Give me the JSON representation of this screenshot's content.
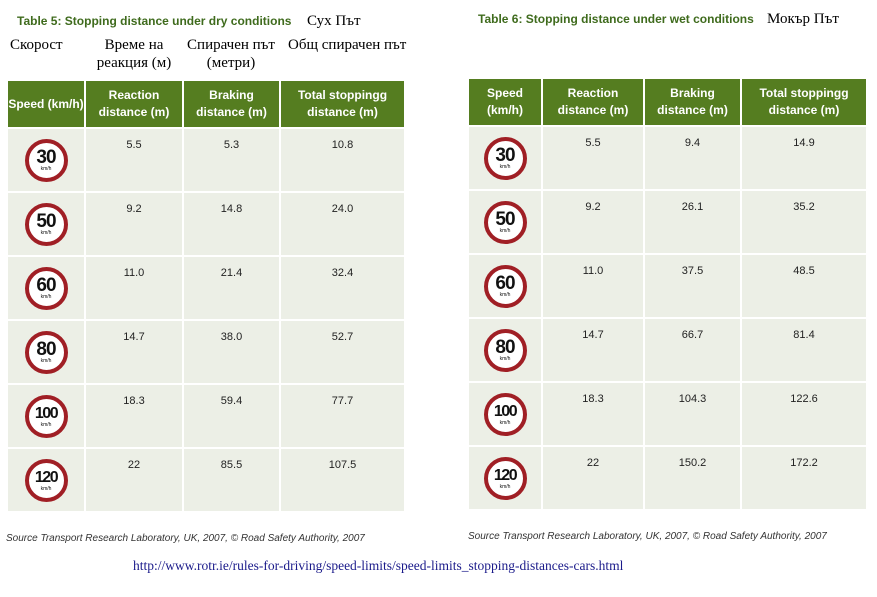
{
  "dry": {
    "caption": "Table 5: Stopping distance under dry conditions",
    "bg_title": "Сух Път",
    "bg_headers": {
      "speed": "Скорост",
      "reaction": "Време на реакция (м)",
      "braking": "Спирачен път (метри)",
      "total": "Общ спирачен път"
    },
    "headers": {
      "speed": "Speed (km/h)",
      "reaction": "Reaction distance (m)",
      "braking": "Braking distance (m)",
      "total": "Total stoppingg distance (m)"
    },
    "rows": [
      {
        "speed": "30",
        "reaction": "5.5",
        "braking": "5.3",
        "total": "10.8"
      },
      {
        "speed": "50",
        "reaction": "9.2",
        "braking": "14.8",
        "total": "24.0"
      },
      {
        "speed": "60",
        "reaction": "11.0",
        "braking": "21.4",
        "total": "32.4"
      },
      {
        "speed": "80",
        "reaction": "14.7",
        "braking": "38.0",
        "total": "52.7"
      },
      {
        "speed": "100",
        "reaction": "18.3",
        "braking": "59.4",
        "total": "77.7"
      },
      {
        "speed": "120",
        "reaction": "22",
        "braking": "85.5",
        "total": "107.5"
      }
    ],
    "source": "Source Transport Research Laboratory, UK, 2007, © Road Safety Authority, 2007"
  },
  "wet": {
    "caption": "Table 6: Stopping distance under wet conditions",
    "bg_title": "Мокър Път",
    "headers": {
      "speed": "Speed (km/h)",
      "reaction": "Reaction distance (m)",
      "braking": "Braking distance (m)",
      "total": "Total stoppingg distance (m)"
    },
    "rows": [
      {
        "speed": "30",
        "reaction": "5.5",
        "braking": "9.4",
        "total": "14.9"
      },
      {
        "speed": "50",
        "reaction": "9.2",
        "braking": "26.1",
        "total": "35.2"
      },
      {
        "speed": "60",
        "reaction": "11.0",
        "braking": "37.5",
        "total": "48.5"
      },
      {
        "speed": "80",
        "reaction": "14.7",
        "braking": "66.7",
        "total": "81.4"
      },
      {
        "speed": "100",
        "reaction": "18.3",
        "braking": "104.3",
        "total": "122.6"
      },
      {
        "speed": "120",
        "reaction": "22",
        "braking": "150.2",
        "total": "172.2"
      }
    ],
    "source": "Source Transport Research Laboratory, UK, 2007, © Road Safety Authority, 2007"
  },
  "sign_unit": "km/h",
  "url": "http://www.rotr.ie/rules-for-driving/speed-limits/speed-limits_stopping-distances-cars.html",
  "colors": {
    "header_green": "#557d20",
    "caption_green": "#3f6b1d",
    "cell_bg": "#ecefe6",
    "sign_red": "#a01f25",
    "link_blue": "#1a1a8a"
  }
}
